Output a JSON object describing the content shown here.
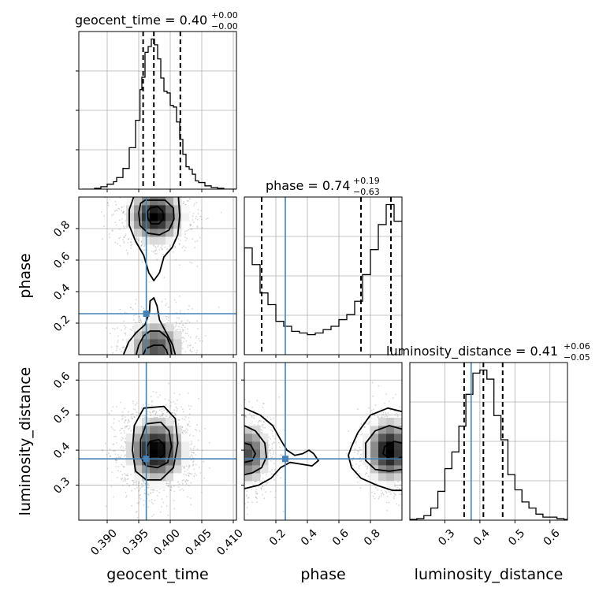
{
  "chart_data": {
    "type": "corner",
    "parameters": [
      "geocent_time",
      "phase",
      "luminosity_distance"
    ],
    "truth_color": "#4682b4",
    "grid": true,
    "marginals": [
      {
        "param": "geocent_time",
        "title": {
          "prefix": "geocent_time = 0.40",
          "sup": "+0.00",
          "sub": "−0.00"
        },
        "quantile_lines": [
          0.3957,
          0.3974,
          0.4016
        ],
        "truth": null,
        "hist": {
          "edges": [
            0.386,
            0.388,
            0.389,
            0.39,
            0.391,
            0.3915,
            0.3925,
            0.3935,
            0.3945,
            0.3952,
            0.3955,
            0.396,
            0.3965,
            0.397,
            0.3975,
            0.398,
            0.3985,
            0.399,
            0.3995,
            0.4,
            0.4005,
            0.401,
            0.4015,
            0.402,
            0.4025,
            0.403,
            0.4035,
            0.404,
            0.4045,
            0.4055,
            0.4065,
            0.4075,
            0.4085,
            0.4095,
            0.4105
          ],
          "counts": [
            0,
            1,
            3,
            6,
            9,
            14,
            25,
            50,
            83,
            120,
            135,
            165,
            172,
            181,
            174,
            157,
            134,
            118,
            116,
            101,
            99,
            81,
            60,
            42,
            27,
            24,
            18,
            10,
            8,
            4,
            2,
            1,
            0,
            0
          ]
        }
      },
      {
        "param": "phase",
        "title": {
          "prefix": "phase = 0.74",
          "sup": "+0.19",
          "sub": "−0.63"
        },
        "quantile_lines": [
          0.11,
          0.74,
          0.93
        ],
        "truth": 0.26,
        "hist": {
          "edges": [
            0.0,
            0.05,
            0.1,
            0.15,
            0.2,
            0.25,
            0.3,
            0.35,
            0.4,
            0.45,
            0.5,
            0.55,
            0.6,
            0.65,
            0.7,
            0.75,
            0.8,
            0.85,
            0.9,
            0.95,
            1.0
          ],
          "counts": [
            0.64,
            0.54,
            0.37,
            0.3,
            0.2,
            0.17,
            0.14,
            0.13,
            0.12,
            0.13,
            0.15,
            0.17,
            0.21,
            0.24,
            0.32,
            0.48,
            0.63,
            0.78,
            0.9,
            0.8
          ]
        }
      },
      {
        "param": "luminosity_distance",
        "title": {
          "prefix": "luminosity_distance = 0.41",
          "sup": "+0.06",
          "sub": "−0.05"
        },
        "quantile_lines": [
          0.355,
          0.41,
          0.465
        ],
        "truth": 0.375,
        "hist": {
          "edges": [
            0.2,
            0.22,
            0.24,
            0.26,
            0.28,
            0.3,
            0.32,
            0.34,
            0.36,
            0.38,
            0.4,
            0.42,
            0.44,
            0.46,
            0.48,
            0.5,
            0.52,
            0.54,
            0.56,
            0.58,
            0.6,
            0.62,
            0.64,
            0.66
          ],
          "counts": [
            0.005,
            0.01,
            0.03,
            0.08,
            0.19,
            0.34,
            0.45,
            0.62,
            0.83,
            0.97,
            0.99,
            0.93,
            0.69,
            0.53,
            0.3,
            0.2,
            0.12,
            0.08,
            0.04,
            0.02,
            0.02,
            0.01,
            0.005
          ]
        }
      }
    ],
    "axes": {
      "geocent_time": {
        "label": "geocent_time",
        "lim": [
          0.3855,
          0.4105
        ],
        "ticks": [
          0.39,
          0.395,
          0.4,
          0.405,
          0.41
        ],
        "tick_labels": [
          "0.390",
          "0.395",
          "0.400",
          "0.405",
          "0.410"
        ]
      },
      "phase": {
        "label": "phase",
        "lim": [
          0.0,
          1.0
        ],
        "ticks": [
          0.2,
          0.4,
          0.6,
          0.8
        ],
        "tick_labels": [
          "0.2",
          "0.4",
          "0.6",
          "0.8"
        ]
      },
      "luminosity_distance": {
        "label": "luminosity_distance",
        "lim": [
          0.2,
          0.65
        ],
        "ticks": [
          0.3,
          0.4,
          0.5,
          0.6
        ],
        "tick_labels": [
          "0.3",
          "0.4",
          "0.5",
          "0.6"
        ]
      }
    },
    "truths": {
      "geocent_time": 0.3962,
      "phase": 0.26,
      "luminosity_distance": 0.375
    },
    "joint": [
      {
        "x": "geocent_time",
        "y": "phase",
        "modes": [
          {
            "cx": 0.3977,
            "cy": 0.88,
            "sx": 0.0024,
            "sy": 0.09,
            "w": 1.0
          },
          {
            "cx": 0.3977,
            "cy": 0.05,
            "sx": 0.0024,
            "sy": 0.1,
            "w": 0.7
          }
        ],
        "contours": [
          {
            "level": "inner",
            "closed": true,
            "points": [
              [
                0.3968,
                0.93
              ],
              [
                0.398,
                0.94
              ],
              [
                0.3988,
                0.91
              ],
              [
                0.3989,
                0.86
              ],
              [
                0.3982,
                0.83
              ],
              [
                0.397,
                0.83
              ],
              [
                0.3964,
                0.87
              ],
              [
                0.3964,
                0.91
              ]
            ]
          },
          {
            "level": "middle",
            "closed": true,
            "points": [
              [
                0.396,
                0.98
              ],
              [
                0.3992,
                0.98
              ],
              [
                0.4005,
                0.93
              ],
              [
                0.4006,
                0.86
              ],
              [
                0.3998,
                0.79
              ],
              [
                0.3983,
                0.76
              ],
              [
                0.3965,
                0.77
              ],
              [
                0.3952,
                0.82
              ],
              [
                0.395,
                0.9
              ],
              [
                0.3953,
                0.96
              ]
            ]
          },
          {
            "level": "outer",
            "closed": false,
            "points": [
              [
                0.3942,
                1.0
              ],
              [
                0.3935,
                0.92
              ],
              [
                0.3935,
                0.82
              ],
              [
                0.3945,
                0.72
              ],
              [
                0.3958,
                0.63
              ],
              [
                0.3966,
                0.52
              ],
              [
                0.3974,
                0.47
              ],
              [
                0.3983,
                0.52
              ],
              [
                0.399,
                0.62
              ],
              [
                0.4003,
                0.68
              ],
              [
                0.4012,
                0.76
              ],
              [
                0.4015,
                0.88
              ],
              [
                0.4013,
                1.0
              ]
            ]
          },
          {
            "level": "outer",
            "closed": false,
            "points": [
              [
                0.3926,
                0.0
              ],
              [
                0.3934,
                0.08
              ],
              [
                0.3946,
                0.14
              ],
              [
                0.396,
                0.19
              ],
              [
                0.3967,
                0.27
              ],
              [
                0.3968,
                0.34
              ],
              [
                0.3974,
                0.36
              ],
              [
                0.3979,
                0.31
              ],
              [
                0.3983,
                0.22
              ],
              [
                0.3995,
                0.13
              ],
              [
                0.4004,
                0.06
              ],
              [
                0.4008,
                0.0
              ]
            ]
          },
          {
            "level": "middle",
            "closed": false,
            "points": [
              [
                0.3946,
                0.0
              ],
              [
                0.395,
                0.06
              ],
              [
                0.3958,
                0.12
              ],
              [
                0.3968,
                0.15
              ],
              [
                0.3983,
                0.15
              ],
              [
                0.3995,
                0.11
              ],
              [
                0.4,
                0.06
              ],
              [
                0.4002,
                0.0
              ]
            ]
          },
          {
            "level": "inner",
            "closed": false,
            "points": [
              [
                0.3957,
                0.0
              ],
              [
                0.3962,
                0.04
              ],
              [
                0.3974,
                0.06
              ],
              [
                0.3988,
                0.06
              ],
              [
                0.3994,
                0.03
              ],
              [
                0.3996,
                0.0
              ]
            ]
          }
        ]
      },
      {
        "x": "geocent_time",
        "y": "luminosity_distance",
        "modes": [
          {
            "cx": 0.3978,
            "cy": 0.4,
            "sx": 0.0024,
            "sy": 0.05,
            "w": 1.0
          }
        ],
        "contours": [
          {
            "level": "inner",
            "closed": true,
            "points": [
              [
                0.3968,
                0.425
              ],
              [
                0.3982,
                0.43
              ],
              [
                0.399,
                0.415
              ],
              [
                0.3991,
                0.39
              ],
              [
                0.3983,
                0.375
              ],
              [
                0.397,
                0.375
              ],
              [
                0.3962,
                0.39
              ],
              [
                0.3963,
                0.41
              ]
            ]
          },
          {
            "level": "middle",
            "closed": true,
            "points": [
              [
                0.3962,
                0.475
              ],
              [
                0.3985,
                0.48
              ],
              [
                0.3998,
                0.455
              ],
              [
                0.4002,
                0.41
              ],
              [
                0.3996,
                0.365
              ],
              [
                0.398,
                0.35
              ],
              [
                0.3962,
                0.355
              ],
              [
                0.3953,
                0.38
              ],
              [
                0.3953,
                0.43
              ]
            ]
          },
          {
            "level": "outer",
            "closed": true,
            "points": [
              [
                0.3958,
                0.52
              ],
              [
                0.399,
                0.525
              ],
              [
                0.4008,
                0.49
              ],
              [
                0.4012,
                0.42
              ],
              [
                0.4005,
                0.35
              ],
              [
                0.3985,
                0.315
              ],
              [
                0.3962,
                0.315
              ],
              [
                0.3945,
                0.34
              ],
              [
                0.394,
                0.4
              ],
              [
                0.3943,
                0.47
              ]
            ]
          }
        ]
      },
      {
        "x": "phase",
        "y": "luminosity_distance",
        "modes": [
          {
            "cx": 0.92,
            "cy": 0.4,
            "sx": 0.08,
            "sy": 0.05,
            "w": 1.0
          },
          {
            "cx": 0.03,
            "cy": 0.39,
            "sx": 0.07,
            "sy": 0.05,
            "w": 0.7
          }
        ],
        "contours": [
          {
            "level": "inner",
            "closed": false,
            "points": [
              [
                1.0,
                0.42
              ],
              [
                0.95,
                0.425
              ],
              [
                0.89,
                0.41
              ],
              [
                0.88,
                0.39
              ],
              [
                0.92,
                0.375
              ],
              [
                0.97,
                0.375
              ],
              [
                1.0,
                0.38
              ]
            ]
          },
          {
            "level": "middle",
            "closed": false,
            "points": [
              [
                1.0,
                0.46
              ],
              [
                0.92,
                0.47
              ],
              [
                0.83,
                0.455
              ],
              [
                0.77,
                0.42
              ],
              [
                0.77,
                0.37
              ],
              [
                0.83,
                0.345
              ],
              [
                0.92,
                0.34
              ],
              [
                1.0,
                0.345
              ]
            ]
          },
          {
            "level": "outer",
            "closed": false,
            "points": [
              [
                1.0,
                0.51
              ],
              [
                0.91,
                0.52
              ],
              [
                0.8,
                0.5
              ],
              [
                0.72,
                0.45
              ],
              [
                0.68,
                0.41
              ],
              [
                0.66,
                0.385
              ],
              [
                0.68,
                0.35
              ],
              [
                0.74,
                0.32
              ],
              [
                0.84,
                0.3
              ],
              [
                0.94,
                0.285
              ],
              [
                1.0,
                0.285
              ]
            ]
          },
          {
            "level": "inner",
            "closed": false,
            "points": [
              [
                0.0,
                0.42
              ],
              [
                0.04,
                0.415
              ],
              [
                0.07,
                0.39
              ],
              [
                0.05,
                0.37
              ],
              [
                0.0,
                0.365
              ]
            ]
          },
          {
            "level": "middle",
            "closed": false,
            "points": [
              [
                0.0,
                0.47
              ],
              [
                0.07,
                0.455
              ],
              [
                0.13,
                0.42
              ],
              [
                0.14,
                0.38
              ],
              [
                0.11,
                0.35
              ],
              [
                0.05,
                0.335
              ],
              [
                0.0,
                0.33
              ]
            ]
          },
          {
            "level": "outer",
            "closed": false,
            "points": [
              [
                0.0,
                0.52
              ],
              [
                0.1,
                0.5
              ],
              [
                0.18,
                0.47
              ],
              [
                0.23,
                0.43
              ],
              [
                0.27,
                0.4
              ],
              [
                0.32,
                0.385
              ],
              [
                0.37,
                0.39
              ],
              [
                0.41,
                0.4
              ],
              [
                0.44,
                0.39
              ],
              [
                0.47,
                0.37
              ],
              [
                0.43,
                0.355
              ],
              [
                0.36,
                0.36
              ],
              [
                0.29,
                0.365
              ],
              [
                0.23,
                0.35
              ],
              [
                0.17,
                0.32
              ],
              [
                0.09,
                0.3
              ],
              [
                0.0,
                0.29
              ]
            ]
          }
        ]
      }
    ]
  }
}
